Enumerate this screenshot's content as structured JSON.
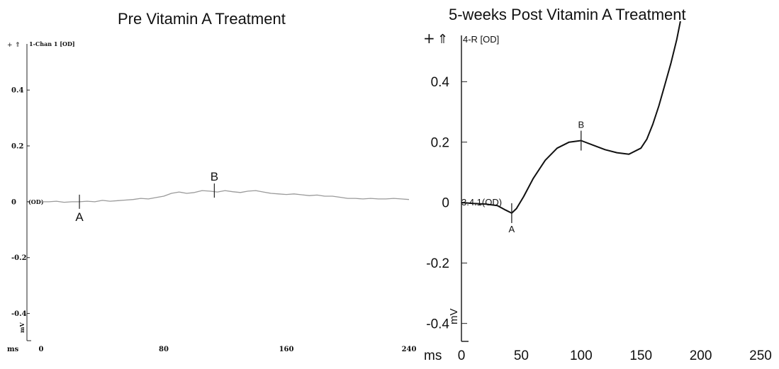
{
  "chart_data": [
    {
      "type": "line",
      "title": "Pre Vitamin A Treatment",
      "xlabel": "ms",
      "ylabel": "mV",
      "xlim": [
        0,
        240
      ],
      "ylim": [
        -0.5,
        0.55
      ],
      "x_ticks": [
        "0",
        "80",
        "160",
        "240"
      ],
      "y_ticks": [
        {
          "v": 0.4,
          "label": "0.4"
        },
        {
          "v": 0.2,
          "label": "0.2"
        },
        {
          "v": 0,
          "label": "0"
        },
        {
          "v": -0.2,
          "label": "-0.2"
        },
        {
          "v": -0.4,
          "label": "-0.4"
        }
      ],
      "scale_marker": "+",
      "channel_label": "1-Chan 1 [OD]",
      "baseline_label": "(OD)",
      "series": [
        {
          "x": [
            0,
            5,
            10,
            15,
            20,
            25,
            30,
            35,
            40,
            45,
            50,
            55,
            60,
            65,
            70,
            75,
            80,
            85,
            90,
            95,
            100,
            105,
            110,
            115,
            120,
            125,
            130,
            135,
            140,
            145,
            150,
            155,
            160,
            165,
            170,
            175,
            180,
            185,
            190,
            195,
            200,
            205,
            210,
            215,
            220,
            225,
            230,
            235,
            240
          ],
          "values": [
            0,
            0,
            0.002,
            -0.002,
            0,
            0,
            0.002,
            0,
            0.005,
            0.002,
            0.004,
            0.006,
            0.008,
            0.012,
            0.01,
            0.015,
            0.02,
            0.03,
            0.035,
            0.03,
            0.033,
            0.04,
            0.038,
            0.035,
            0.04,
            0.036,
            0.033,
            0.038,
            0.04,
            0.035,
            0.03,
            0.028,
            0.026,
            0.028,
            0.025,
            0.022,
            0.024,
            0.02,
            0.02,
            0.016,
            0.012,
            0.012,
            0.01,
            0.012,
            0.01,
            0.01,
            0.012,
            0.01,
            0.008
          ]
        }
      ],
      "markers": [
        {
          "label": "A",
          "x": 25,
          "y": 0
        },
        {
          "label": "B",
          "x": 113,
          "y": 0.04
        }
      ],
      "line_color": "#9a9a9a"
    },
    {
      "type": "line",
      "title": "5-weeks Post Vitamin A Treatment",
      "xlabel": "ms",
      "ylabel": "mV",
      "xlim": [
        0,
        250
      ],
      "ylim": [
        -0.6,
        0.6
      ],
      "x_ticks": [
        "0",
        "50",
        "100",
        "150",
        "200",
        "250"
      ],
      "y_ticks": [
        {
          "v": 0.4,
          "label": "0.4"
        },
        {
          "v": 0.2,
          "label": "0.2"
        },
        {
          "v": 0,
          "label": "0"
        },
        {
          "v": -0.2,
          "label": "-0.2"
        },
        {
          "v": -0.4,
          "label": "-0.4"
        }
      ],
      "scale_marker": "+",
      "channel_label": "4-R [OD]",
      "baseline_label": "3.4.1(OD)",
      "series": [
        {
          "x": [
            0,
            10,
            20,
            30,
            37,
            42,
            46,
            52,
            60,
            70,
            80,
            90,
            100,
            110,
            120,
            130,
            140,
            150,
            155,
            160,
            165,
            170,
            175,
            180,
            183
          ],
          "values": [
            0,
            -0.003,
            -0.005,
            -0.01,
            -0.025,
            -0.035,
            -0.02,
            0.02,
            0.08,
            0.14,
            0.18,
            0.2,
            0.205,
            0.19,
            0.175,
            0.165,
            0.16,
            0.18,
            0.21,
            0.26,
            0.32,
            0.39,
            0.46,
            0.54,
            0.6
          ]
        }
      ],
      "markers": [
        {
          "label": "A",
          "x": 42,
          "y": -0.035
        },
        {
          "label": "B",
          "x": 100,
          "y": 0.205
        }
      ],
      "line_color": "#111111"
    }
  ]
}
